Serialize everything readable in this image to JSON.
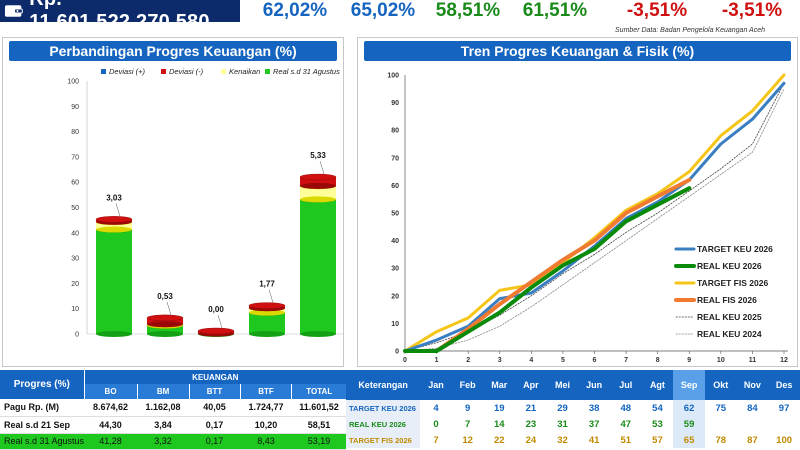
{
  "header": {
    "total": "Rp. 11.601.522.270.580",
    "pcts": [
      {
        "text": "62,02%",
        "color": "#1565c0"
      },
      {
        "text": "65,02%",
        "color": "#1565c0"
      },
      {
        "text": "58,51%",
        "color": "#1a8a1a"
      },
      {
        "text": "61,51%",
        "color": "#1a8a1a"
      },
      {
        "text": "-3,51%",
        "color": "#d01010"
      },
      {
        "text": "-3,51%",
        "color": "#d01010"
      }
    ]
  },
  "source_note": "Sumber Data: Badan Pengelola Keuangan Aceh",
  "left_panel": {
    "title": "Perbandingan Progres Keuangan (%)"
  },
  "right_panel": {
    "title": "Tren Progres Keuangan & Fisik (%)"
  },
  "colors": {
    "green": "#1ec81e",
    "red": "#d01010",
    "yellow": "#ffff99",
    "blue": "#1565c0",
    "target_keu": "#3a7ec2",
    "real_keu": "#0a8a0a",
    "target_fis": "#f5c518",
    "real_fis": "#f07a30"
  },
  "chart_data": [
    {
      "type": "bar",
      "title": "Perbandingan Progres Keuangan (%)",
      "legend": [
        "Deviasi (+)",
        "Deviasi (-)",
        "Kenaikan",
        "Real s.d 31 Agustus"
      ],
      "legend_placement": "top",
      "ylim": [
        0,
        100
      ],
      "yticks": [
        "0",
        "10",
        "20",
        "30",
        "40",
        "50",
        "60",
        "70",
        "80",
        "90",
        "100"
      ],
      "categories": [
        "BO",
        "BM",
        "BTT",
        "BTF",
        "TOTAL"
      ],
      "series": [
        {
          "name": "Real s.d 31 Agustus",
          "values": [
            41.28,
            3.32,
            0.17,
            8.43,
            53.19
          ]
        },
        {
          "name": "Kenaikan",
          "values": [
            3.03,
            0.53,
            0.0,
            1.77,
            5.33
          ]
        },
        {
          "name": "Deviasi (-)",
          "values": [
            1.0,
            2.5,
            1.0,
            1.0,
            3.5
          ]
        }
      ],
      "data_labels": [
        "3,03",
        "0,53",
        "0,00",
        "1,77",
        "5,33"
      ]
    },
    {
      "type": "line",
      "title": "Tren Progres Keuangan & Fisik (%)",
      "xlim": [
        0,
        12
      ],
      "ylim": [
        0,
        100
      ],
      "xticks": [
        "0",
        "1",
        "2",
        "3",
        "4",
        "5",
        "6",
        "7",
        "8",
        "9",
        "10",
        "11",
        "12"
      ],
      "yticks": [
        "0",
        "10",
        "20",
        "30",
        "40",
        "50",
        "60",
        "70",
        "80",
        "90",
        "100"
      ],
      "grid": false,
      "legend_placement": "bottom-right",
      "series": [
        {
          "name": "TARGET KEU 2026",
          "x": [
            0,
            1,
            2,
            3,
            4,
            5,
            6,
            7,
            8,
            9,
            10,
            11,
            12
          ],
          "values": [
            0,
            4,
            9,
            19,
            21,
            29,
            38,
            48,
            54,
            62,
            75,
            84,
            97
          ]
        },
        {
          "name": "REAL KEU 2026",
          "x": [
            0,
            1,
            2,
            3,
            4,
            5,
            6,
            7,
            8,
            9
          ],
          "values": [
            0,
            0,
            7,
            14,
            23,
            31,
            37,
            47,
            53,
            59
          ]
        },
        {
          "name": "TARGET FIS 2026",
          "x": [
            0,
            1,
            2,
            3,
            4,
            5,
            6,
            7,
            8,
            9,
            10,
            11,
            12
          ],
          "values": [
            0,
            7,
            12,
            22,
            24,
            32,
            41,
            51,
            57,
            65,
            78,
            87,
            100
          ]
        },
        {
          "name": "REAL FIS 2026",
          "x": [
            1,
            2,
            3,
            4,
            5,
            6,
            7,
            8,
            9
          ],
          "values": [
            0,
            8,
            17,
            25,
            33,
            40,
            50,
            56,
            62
          ]
        },
        {
          "name": "REAL KEU 2025",
          "x": [
            0,
            1,
            2,
            3,
            4,
            5,
            6,
            7,
            8,
            9,
            10,
            11,
            12
          ],
          "values": [
            0,
            3,
            7,
            13,
            20,
            28,
            35,
            43,
            50,
            58,
            66,
            75,
            97
          ]
        },
        {
          "name": "REAL KEU 2024",
          "x": [
            0,
            1,
            2,
            3,
            4,
            5,
            6,
            7,
            8,
            9,
            10,
            11,
            12
          ],
          "values": [
            0,
            1,
            4,
            9,
            16,
            24,
            32,
            40,
            48,
            56,
            64,
            72,
            95
          ]
        }
      ]
    }
  ],
  "table_left": {
    "corner": "Progres (%)",
    "group": "KEUANGAN",
    "columns": [
      "BO",
      "BM",
      "BTT",
      "BTF",
      "TOTAL"
    ],
    "rows": [
      {
        "label": "Pagu Rp. (M)",
        "values": [
          "8.674,62",
          "1.162,08",
          "40,05",
          "1.724,77",
          "11.601,52"
        ]
      },
      {
        "label": "Real s.d 21 Sep",
        "values": [
          "44,30",
          "3,84",
          "0,17",
          "10,20",
          "58,51"
        ]
      },
      {
        "label": "Real s.d 31 Agustus",
        "values": [
          "41,28",
          "3,32",
          "0,17",
          "8,43",
          "53,19"
        ]
      }
    ]
  },
  "table_right": {
    "corner": "Keterangan",
    "months": [
      "Jan",
      "Feb",
      "Mar",
      "Apr",
      "Mei",
      "Jun",
      "Jul",
      "Agt",
      "Sep",
      "Okt",
      "Nov",
      "Des"
    ],
    "rows": [
      {
        "label": "TARGET KEU 2026",
        "values": [
          "4",
          "9",
          "19",
          "21",
          "29",
          "38",
          "48",
          "54",
          "62",
          "75",
          "84",
          "97"
        ],
        "color": "#1565c0"
      },
      {
        "label": "REAL KEU 2026",
        "values": [
          "0",
          "7",
          "14",
          "23",
          "31",
          "37",
          "47",
          "53",
          "59",
          "",
          "",
          ""
        ],
        "color": "#1a8a1a"
      },
      {
        "label": "TARGET FIS 2026",
        "values": [
          "7",
          "12",
          "22",
          "24",
          "32",
          "41",
          "51",
          "57",
          "65",
          "78",
          "87",
          "100"
        ],
        "color": "#c08a00"
      }
    ]
  }
}
